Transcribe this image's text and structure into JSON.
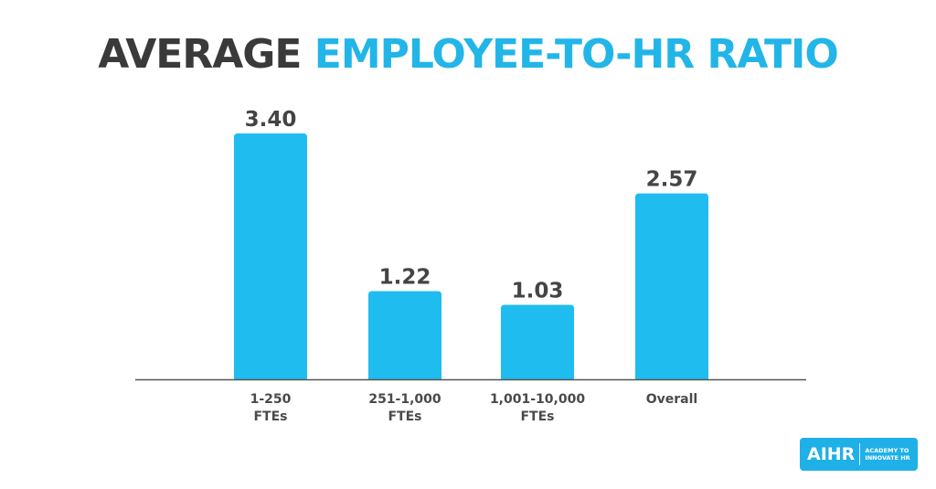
{
  "title_part1": "AVERAGE",
  "title_part2": "EMPLOYEE-TO-HR RATIO",
  "colors": {
    "bar": "#1fbcf0",
    "title_dark": "#3a3a3a",
    "title_accent": "#22b5e8",
    "axis": "#555555",
    "logo_bg": "#1fb0e8"
  },
  "chart_data": {
    "type": "bar",
    "categories": [
      [
        "1-250",
        "FTEs"
      ],
      [
        "251-1,000",
        "FTEs"
      ],
      [
        "1,001-10,000",
        "FTEs"
      ],
      [
        "Overall"
      ]
    ],
    "values": [
      3.4,
      1.22,
      1.03,
      2.57
    ],
    "value_labels": [
      "3.40",
      "1.22",
      "1.03",
      "2.57"
    ],
    "title": "AVERAGE EMPLOYEE-TO-HR RATIO",
    "xlabel": "",
    "ylabel": "",
    "ylim": [
      0,
      3.4
    ],
    "grid": false,
    "legend": "none"
  },
  "logo": {
    "name": "AIHR",
    "tagline_line1": "ACADEMY TO",
    "tagline_line2": "INNOVATE HR"
  }
}
